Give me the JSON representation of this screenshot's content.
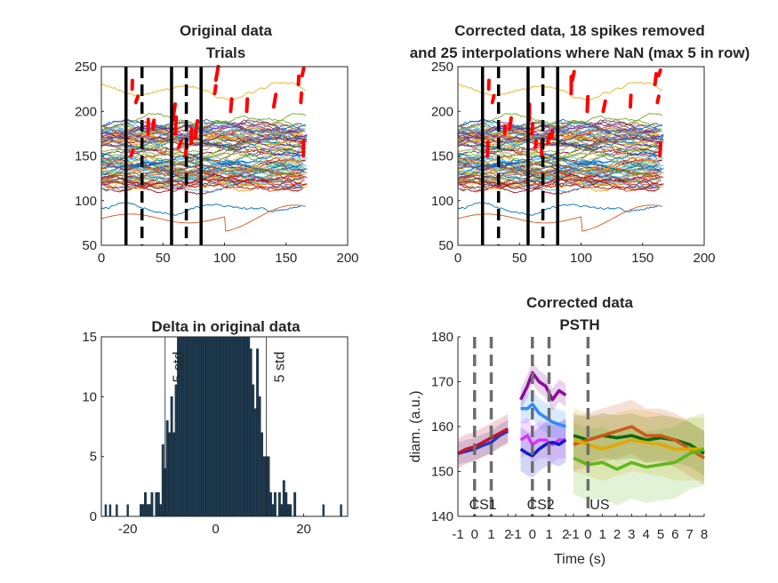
{
  "colors": {
    "trace_palette": [
      "#0072BD",
      "#D95319",
      "#EDB120",
      "#7E2F8E",
      "#77AC30",
      "#4DBEEE",
      "#A2142F"
    ],
    "spike_marks": "#FF0000",
    "epoch_lines": "#000000",
    "histogram_bars": "#1F3A4F",
    "psth_cs1": [
      "#1A3BBF",
      "#C8102E"
    ],
    "psth_cs2": [
      "#8B0A9A",
      "#2E8BFF",
      "#D633FF",
      "#0A1FC8"
    ],
    "psth_us": [
      "#0B6B0B",
      "#CC5A1A",
      "#E0A800",
      "#5FB81C"
    ],
    "psth_marker_lines": "#6E6E6E"
  },
  "chart_data": [
    {
      "id": "original",
      "type": "line",
      "title": [
        "Original data",
        "Trials"
      ],
      "xlim": [
        0,
        200
      ],
      "ylim": [
        50,
        250
      ],
      "xticks": [
        "0",
        "50",
        "100",
        "150",
        "200"
      ],
      "yticks": [
        "50",
        "100",
        "150",
        "200",
        "250"
      ],
      "trials": 90,
      "samples_per_trial": 168,
      "vertical_lines": [
        {
          "x": 20,
          "style": "solid"
        },
        {
          "x": 33,
          "style": "dashed"
        },
        {
          "x": 57,
          "style": "solid"
        },
        {
          "x": 69,
          "style": "dashed"
        },
        {
          "x": 81,
          "style": "solid"
        }
      ],
      "spike_marks": true
    },
    {
      "id": "corrected",
      "type": "line",
      "title": [
        "Corrected data, 18 spikes removed",
        "and 25 interpolations where NaN (max 5 in row)"
      ],
      "xlim": [
        0,
        200
      ],
      "ylim": [
        50,
        250
      ],
      "xticks": [
        "0",
        "50",
        "100",
        "150",
        "200"
      ],
      "yticks": [
        "50",
        "100",
        "150",
        "200",
        "250"
      ],
      "spikes_removed": 18,
      "interpolations": 25,
      "max_in_row": 5,
      "vertical_lines": [
        {
          "x": 20,
          "style": "solid"
        },
        {
          "x": 33,
          "style": "dashed"
        },
        {
          "x": 57,
          "style": "solid"
        },
        {
          "x": 69,
          "style": "dashed"
        },
        {
          "x": 81,
          "style": "solid"
        }
      ],
      "interpolated_marks": true
    },
    {
      "id": "delta",
      "type": "bar",
      "title": [
        "Delta in original data"
      ],
      "xlim": [
        -26,
        30
      ],
      "ylim": [
        0,
        15
      ],
      "xticks": [
        "-20",
        "0",
        "20"
      ],
      "yticks": [
        "0",
        "5",
        "10",
        "15"
      ],
      "std_threshold": {
        "label": "5 std",
        "x": [
          -11.5,
          11.5
        ]
      },
      "bar_centers_from": -25,
      "bar_width": 0.5,
      "outliers": [
        {
          "x": -25,
          "count": 1
        },
        {
          "x": -24,
          "count": 1
        },
        {
          "x": -22.5,
          "count": 1
        },
        {
          "x": -20,
          "count": 1
        },
        {
          "x": 24.5,
          "count": 1
        },
        {
          "x": 28.5,
          "count": 1
        }
      ]
    },
    {
      "id": "psth",
      "type": "line",
      "title": [
        "Corrected data",
        "PSTH"
      ],
      "xlabel": "Time (s)",
      "ylabel": "diam. (a.u.)",
      "ylim": [
        140,
        180
      ],
      "yticks": [
        "140",
        "150",
        "160",
        "170",
        "180"
      ],
      "segments": [
        {
          "name": "CS1",
          "xlim": [
            -1,
            2.2
          ],
          "markers": [
            0,
            1
          ],
          "xticks": [
            "-1",
            "0",
            "1",
            "2"
          ],
          "series": [
            {
              "x": [
                -1,
                -0.5,
                0,
                0.5,
                1,
                1.5,
                2
              ],
              "values": [
                154,
                154.5,
                155,
                155.8,
                156.5,
                158,
                159
              ]
            },
            {
              "x": [
                -1,
                -0.5,
                0,
                0.5,
                1,
                1.5,
                2
              ],
              "values": [
                154,
                155,
                155.5,
                156.5,
                157.5,
                158.5,
                159.5
              ]
            }
          ]
        },
        {
          "name": "CS2",
          "xlim": [
            -1,
            2.2
          ],
          "markers": [
            0,
            1
          ],
          "xticks": [
            "-1",
            "0",
            "1",
            "2"
          ],
          "series": [
            {
              "x": [
                -0.7,
                -0.3,
                0,
                0.4,
                0.8,
                1.2,
                1.6,
                2
              ],
              "values": [
                166,
                169,
                172,
                170,
                169,
                166,
                168,
                167
              ]
            },
            {
              "x": [
                -0.7,
                -0.3,
                0,
                0.4,
                0.8,
                1.2,
                1.6,
                2
              ],
              "values": [
                164,
                164,
                165,
                163,
                162,
                161,
                160.5,
                160
              ]
            },
            {
              "x": [
                -0.7,
                -0.3,
                0,
                0.4,
                0.8,
                1.2,
                1.6,
                2
              ],
              "values": [
                157,
                158,
                156,
                157,
                157,
                156,
                157,
                157
              ]
            },
            {
              "x": [
                -0.7,
                -0.3,
                0,
                0.4,
                0.8,
                1.2,
                1.6,
                2
              ],
              "values": [
                155,
                154,
                153.5,
                155,
                156,
                156.5,
                156,
                157
              ]
            }
          ]
        },
        {
          "name": "US",
          "xlim": [
            -1,
            8
          ],
          "markers": [
            0
          ],
          "xticks": [
            "-1",
            "0",
            "1",
            "2",
            "3",
            "4",
            "5",
            "6",
            "7",
            "8"
          ],
          "series": [
            {
              "x": [
                -1,
                0,
                1,
                2,
                3,
                4,
                5,
                6,
                7,
                8
              ],
              "values": [
                158,
                157,
                158,
                157.5,
                158,
                157,
                157.5,
                157,
                156,
                154
              ]
            },
            {
              "x": [
                -1,
                0,
                1,
                2,
                3,
                4,
                5,
                6,
                7,
                8
              ],
              "values": [
                156,
                157,
                158,
                159,
                160,
                158,
                158,
                157,
                155,
                153
              ]
            },
            {
              "x": [
                -1,
                0,
                1,
                2,
                3,
                4,
                5,
                6,
                7,
                8
              ],
              "values": [
                157,
                156,
                155,
                156,
                157,
                156.5,
                156,
                155,
                155,
                155
              ]
            },
            {
              "x": [
                -1,
                0,
                1,
                2,
                3,
                4,
                5,
                6,
                7,
                8
              ],
              "values": [
                153,
                151.5,
                152,
                150.5,
                152,
                151,
                151.5,
                152,
                154,
                155
              ]
            }
          ]
        }
      ]
    }
  ]
}
